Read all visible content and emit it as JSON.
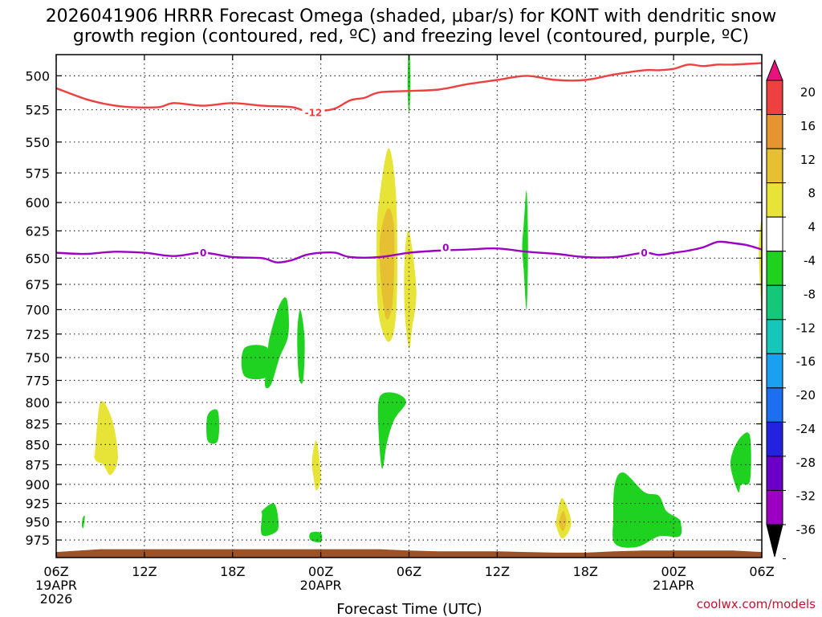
{
  "header": {
    "title_line1": "2026041906 HRRR Forecast Omega (shaded, µbar/s) for KONT with dendritic snow",
    "title_line2": "growth region (contoured, red, ºC) and freezing level (contoured, purple, ºC)"
  },
  "footer": {
    "xlabel": "Forecast Time (UTC)",
    "credit": "coolwx.com/models"
  },
  "chart_data": {
    "type": "heatmap",
    "title": "2026041906 HRRR Forecast Omega (shaded, µbar/s) for KONT with dendritic snow growth region (contoured, red, ºC) and freezing level (contoured, purple, ºC)",
    "xlabel": "Forecast Time (UTC)",
    "ylabel": "",
    "x_unit": "forecast hour from 2026-04-19 06Z",
    "xlim": [
      0,
      48
    ],
    "ylim": [
      1000,
      485
    ],
    "y_log": true,
    "grid": true,
    "x_ticks": [
      {
        "x": 0,
        "labels": [
          "06Z",
          "19APR",
          "2026"
        ]
      },
      {
        "x": 6,
        "labels": [
          "12Z"
        ]
      },
      {
        "x": 12,
        "labels": [
          "18Z"
        ]
      },
      {
        "x": 18,
        "labels": [
          "00Z",
          "20APR"
        ]
      },
      {
        "x": 24,
        "labels": [
          "06Z"
        ]
      },
      {
        "x": 30,
        "labels": [
          "12Z"
        ]
      },
      {
        "x": 36,
        "labels": [
          "18Z"
        ]
      },
      {
        "x": 42,
        "labels": [
          "00Z",
          "21APR"
        ]
      },
      {
        "x": 48,
        "labels": [
          "06Z"
        ]
      }
    ],
    "y_ticks": [
      500,
      525,
      550,
      575,
      600,
      625,
      650,
      675,
      700,
      725,
      750,
      775,
      800,
      825,
      850,
      875,
      900,
      925,
      950,
      975
    ],
    "colorbar": {
      "levels": [
        -36,
        -32,
        -28,
        -24,
        -20,
        -16,
        -12,
        -8,
        -4,
        4,
        8,
        12,
        16,
        20
      ],
      "colors": [
        "#9b9b9b",
        "#9b00c3",
        "#6a00c8",
        "#2323df",
        "#1b6ff0",
        "#1aa0ee",
        "#16c7b9",
        "#15c779",
        "#1fd21f",
        "#ffffff",
        "#e8e337",
        "#e6bf33",
        "#e59430",
        "#ef4040",
        "#e6137e"
      ],
      "labels": [
        "20",
        "16",
        "12",
        "8",
        "4",
        "-4",
        "-8",
        "-12",
        "-16",
        "-20",
        "-24",
        "-28",
        "-32",
        "-36"
      ]
    },
    "contours": [
      {
        "name": "dendritic growth -12",
        "label": "-12",
        "color": "#ef4040",
        "x": [
          0,
          2,
          3.5,
          5,
          7,
          8,
          10,
          12,
          14,
          16,
          17,
          18,
          19,
          20,
          21,
          22,
          24,
          26,
          28,
          30,
          32,
          34,
          36,
          38,
          40,
          41,
          42,
          43,
          44,
          45,
          46,
          48
        ],
        "y": [
          509,
          517,
          521,
          523,
          523,
          520,
          522,
          520,
          522,
          523,
          526,
          526,
          524,
          518,
          516,
          512,
          511,
          510,
          506,
          503,
          500,
          503,
          503,
          499,
          496,
          496,
          495,
          492,
          493,
          492,
          492,
          491
        ]
      },
      {
        "name": "freezing level 0",
        "label": "0",
        "color": "#9b00c3",
        "x": [
          0,
          2,
          4,
          6,
          8,
          10,
          12,
          14,
          15,
          16,
          17,
          18,
          19,
          20,
          22,
          24,
          26,
          28,
          30,
          32,
          34,
          36,
          38,
          40,
          41,
          42,
          43,
          44,
          45,
          46,
          47,
          48
        ],
        "y": [
          645,
          646,
          644,
          645,
          648,
          645,
          649,
          650,
          654,
          652,
          647,
          645,
          645,
          649,
          649,
          645,
          643,
          642,
          641,
          644,
          646,
          649,
          649,
          645,
          647,
          645,
          643,
          640,
          635,
          636,
          638,
          642
        ]
      }
    ],
    "contour_labels": [
      {
        "text": "-12",
        "x": 17.5,
        "y": 527,
        "color": "#ef4040"
      },
      {
        "text": "0",
        "x": 10,
        "y": 645,
        "color": "#9b00c3"
      },
      {
        "text": "0",
        "x": 26.5,
        "y": 640,
        "color": "#9b00c3"
      },
      {
        "text": "0",
        "x": 40,
        "y": 645,
        "color": "#9b00c3"
      }
    ],
    "omega_features": [
      {
        "level": "4 to 8",
        "color": "#e8e337",
        "x": [
          2.6,
          3.0,
          3.8,
          4.2,
          3.7,
          3.2,
          2.6,
          2.5
        ],
        "y": [
          865,
          800,
          820,
          866,
          888,
          875,
          866,
          830
        ]
      },
      {
        "level": "4 to 8",
        "color": "#e8e337",
        "x": [
          22.0,
          22.6,
          23.1,
          23.2,
          23.0,
          22.5,
          21.9,
          21.8
        ],
        "y": [
          595,
          555,
          590,
          670,
          720,
          732,
          700,
          630
        ]
      },
      {
        "level": "8 to 12",
        "color": "#e6bf33",
        "x": [
          22.1,
          22.6,
          23.0,
          22.9,
          22.5,
          22.2,
          22.0
        ],
        "y": [
          625,
          605,
          625,
          690,
          710,
          688,
          650
        ]
      },
      {
        "level": "4 to 8",
        "color": "#e8e337",
        "x": [
          23.7,
          24.0,
          24.5,
          24.2,
          24.0,
          23.7
        ],
        "y": [
          650,
          625,
          680,
          720,
          740,
          700
        ]
      },
      {
        "level": "4 to 8",
        "color": "#e8e337",
        "x": [
          17.4,
          17.7,
          18.0,
          17.7,
          17.5
        ],
        "y": [
          870,
          845,
          890,
          908,
          890
        ]
      },
      {
        "level": "4 to 8",
        "color": "#e8e337",
        "x": [
          34.0,
          34.4,
          35.0,
          34.9,
          34.4,
          34.0
        ],
        "y": [
          950,
          918,
          945,
          962,
          973,
          955
        ]
      },
      {
        "level": "8 to 12",
        "color": "#e6bf33",
        "x": [
          34.2,
          34.5,
          34.7,
          34.5,
          34.3
        ],
        "y": [
          950,
          935,
          950,
          962,
          958
        ]
      },
      {
        "level": "4 to 8",
        "color": "#e8e337",
        "x": [
          47.8,
          48,
          48,
          47.9
        ],
        "y": [
          640,
          618,
          698,
          680
        ]
      },
      {
        "level": "-4 to -8",
        "color": "#1fd21f",
        "x": [
          23.9,
          24.0,
          24.1,
          24.0
        ],
        "y": [
          505,
          475,
          505,
          528
        ]
      },
      {
        "level": "-4 to -8",
        "color": "#1fd21f",
        "x": [
          14.5,
          15.2,
          15.7,
          15.8,
          15.2,
          14.6,
          14.2,
          14.4
        ],
        "y": [
          730,
          695,
          690,
          725,
          750,
          780,
          780,
          750
        ]
      },
      {
        "level": "-4 to -8",
        "color": "#1fd21f",
        "x": [
          12.8,
          14.4,
          14.4,
          12.8
        ],
        "y": [
          740,
          740,
          770,
          770
        ]
      },
      {
        "level": "-4 to -8",
        "color": "#1fd21f",
        "x": [
          16.4,
          16.6,
          16.9,
          16.8,
          16.5
        ],
        "y": [
          725,
          700,
          730,
          775,
          770
        ]
      },
      {
        "level": "-4 to -8",
        "color": "#1fd21f",
        "x": [
          21.9,
          22.2,
          23.2,
          23.8,
          23.0,
          22.5,
          22.2,
          22.0
        ],
        "y": [
          805,
          790,
          790,
          800,
          820,
          848,
          880,
          855
        ]
      },
      {
        "level": "-4 to -8",
        "color": "#1fd21f",
        "x": [
          10.3,
          11.0,
          11.0,
          10.3
        ],
        "y": [
          815,
          810,
          845,
          845
        ]
      },
      {
        "level": "-4 to -8",
        "color": "#1fd21f",
        "x": [
          14.0,
          14.8,
          15.1,
          15.0,
          14.0,
          14.0
        ],
        "y": [
          935,
          925,
          945,
          963,
          968,
          940
        ]
      },
      {
        "level": "-4 to -8",
        "color": "#1fd21f",
        "x": [
          17.3,
          18.0,
          18.0,
          17.3
        ],
        "y": [
          965,
          965,
          978,
          975
        ]
      },
      {
        "level": "-4 to -8",
        "color": "#1fd21f",
        "x": [
          1.8,
          1.95,
          1.85,
          1.75
        ],
        "y": [
          945,
          942,
          958,
          955
        ]
      },
      {
        "level": "-4 to -8",
        "color": "#1fd21f",
        "x": [
          31.8,
          32.0,
          32.1,
          32.0,
          31.8,
          31.7
        ],
        "y": [
          620,
          590,
          640,
          700,
          660,
          640
        ]
      },
      {
        "level": "-4 to -8",
        "color": "#1fd21f",
        "x": [
          38.0,
          38.6,
          40.0,
          41.0,
          41.5,
          42.3,
          42.5,
          42.4,
          41.0,
          39.5,
          38.0,
          37.9
        ],
        "y": [
          900,
          885,
          910,
          915,
          935,
          945,
          952,
          970,
          970,
          985,
          980,
          945
        ]
      },
      {
        "level": "-4 to -8",
        "color": "#1fd21f",
        "x": [
          46.0,
          46.6,
          47.2,
          47.2,
          46.6,
          46.4,
          45.9
        ],
        "y": [
          860,
          840,
          840,
          895,
          900,
          910,
          880
        ]
      }
    ],
    "terrain": {
      "name": "surface",
      "color": "#9b5228",
      "x": [
        0,
        3,
        8,
        12,
        16,
        22,
        24,
        26,
        30,
        32,
        34,
        36,
        38,
        40,
        42,
        44,
        46,
        48
      ],
      "y": [
        992,
        988,
        988,
        988,
        988,
        988,
        990,
        991,
        991,
        992,
        993,
        993,
        991,
        990,
        990,
        990,
        990,
        992
      ]
    }
  }
}
